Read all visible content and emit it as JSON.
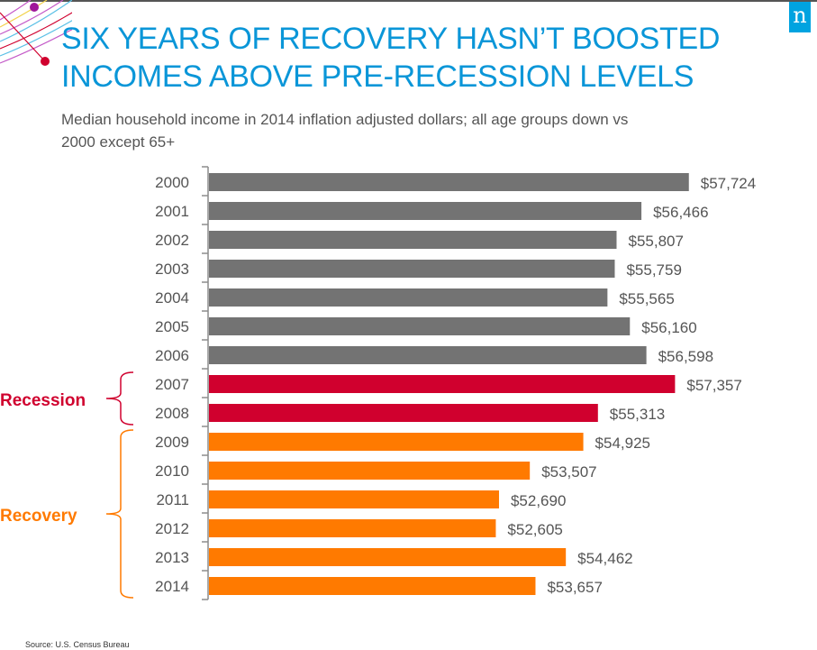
{
  "slide": {
    "title_line1": "SIX YEARS OF RECOVERY HASN’T BOOSTED",
    "title_line2": "INCOMES ABOVE PRE-RECESSION LEVELS",
    "subtitle_line1": "Median household income in 2014 inflation adjusted dollars; all age groups down vs",
    "subtitle_line2": "2000 except 65+",
    "source": "Source:  U.S. Census Bureau",
    "logo_letter": "n",
    "logo_icon": "nielsen-logo-icon",
    "colors": {
      "title": "#0a96d8",
      "logo": "#00a3e0",
      "pre_recession": "#737373",
      "recession": "#d0002e",
      "recovery": "#ff7a00"
    }
  },
  "chart_data": {
    "type": "bar",
    "orientation": "horizontal",
    "title": "Median household income in 2014 inflation adjusted dollars",
    "xlabel": "",
    "ylabel": "",
    "xlim": [
      45000,
      60000
    ],
    "grid": false,
    "categories": [
      "2000",
      "2001",
      "2002",
      "2003",
      "2004",
      "2005",
      "2006",
      "2007",
      "2008",
      "2009",
      "2010",
      "2011",
      "2012",
      "2013",
      "2014"
    ],
    "values": [
      57724,
      56466,
      55807,
      55759,
      55565,
      56160,
      56598,
      57357,
      55313,
      54925,
      53507,
      52690,
      52605,
      54462,
      53657
    ],
    "value_labels": [
      "$57,724",
      "$56,466",
      "$55,807",
      "$55,759",
      "$55,565",
      "$56,160",
      "$56,598",
      "$57,357",
      "$55,313",
      "$54,925",
      "$53,507",
      "$52,690",
      "$52,605",
      "$54,462",
      "$53,657"
    ],
    "bar_groups": [
      "pre",
      "pre",
      "pre",
      "pre",
      "pre",
      "pre",
      "pre",
      "recession",
      "recession",
      "recovery",
      "recovery",
      "recovery",
      "recovery",
      "recovery",
      "recovery"
    ],
    "annotations": [
      {
        "label": "Recession",
        "from": "2007",
        "to": "2008",
        "group": "recession"
      },
      {
        "label": "Recovery",
        "from": "2009",
        "to": "2014",
        "group": "recovery"
      }
    ]
  }
}
